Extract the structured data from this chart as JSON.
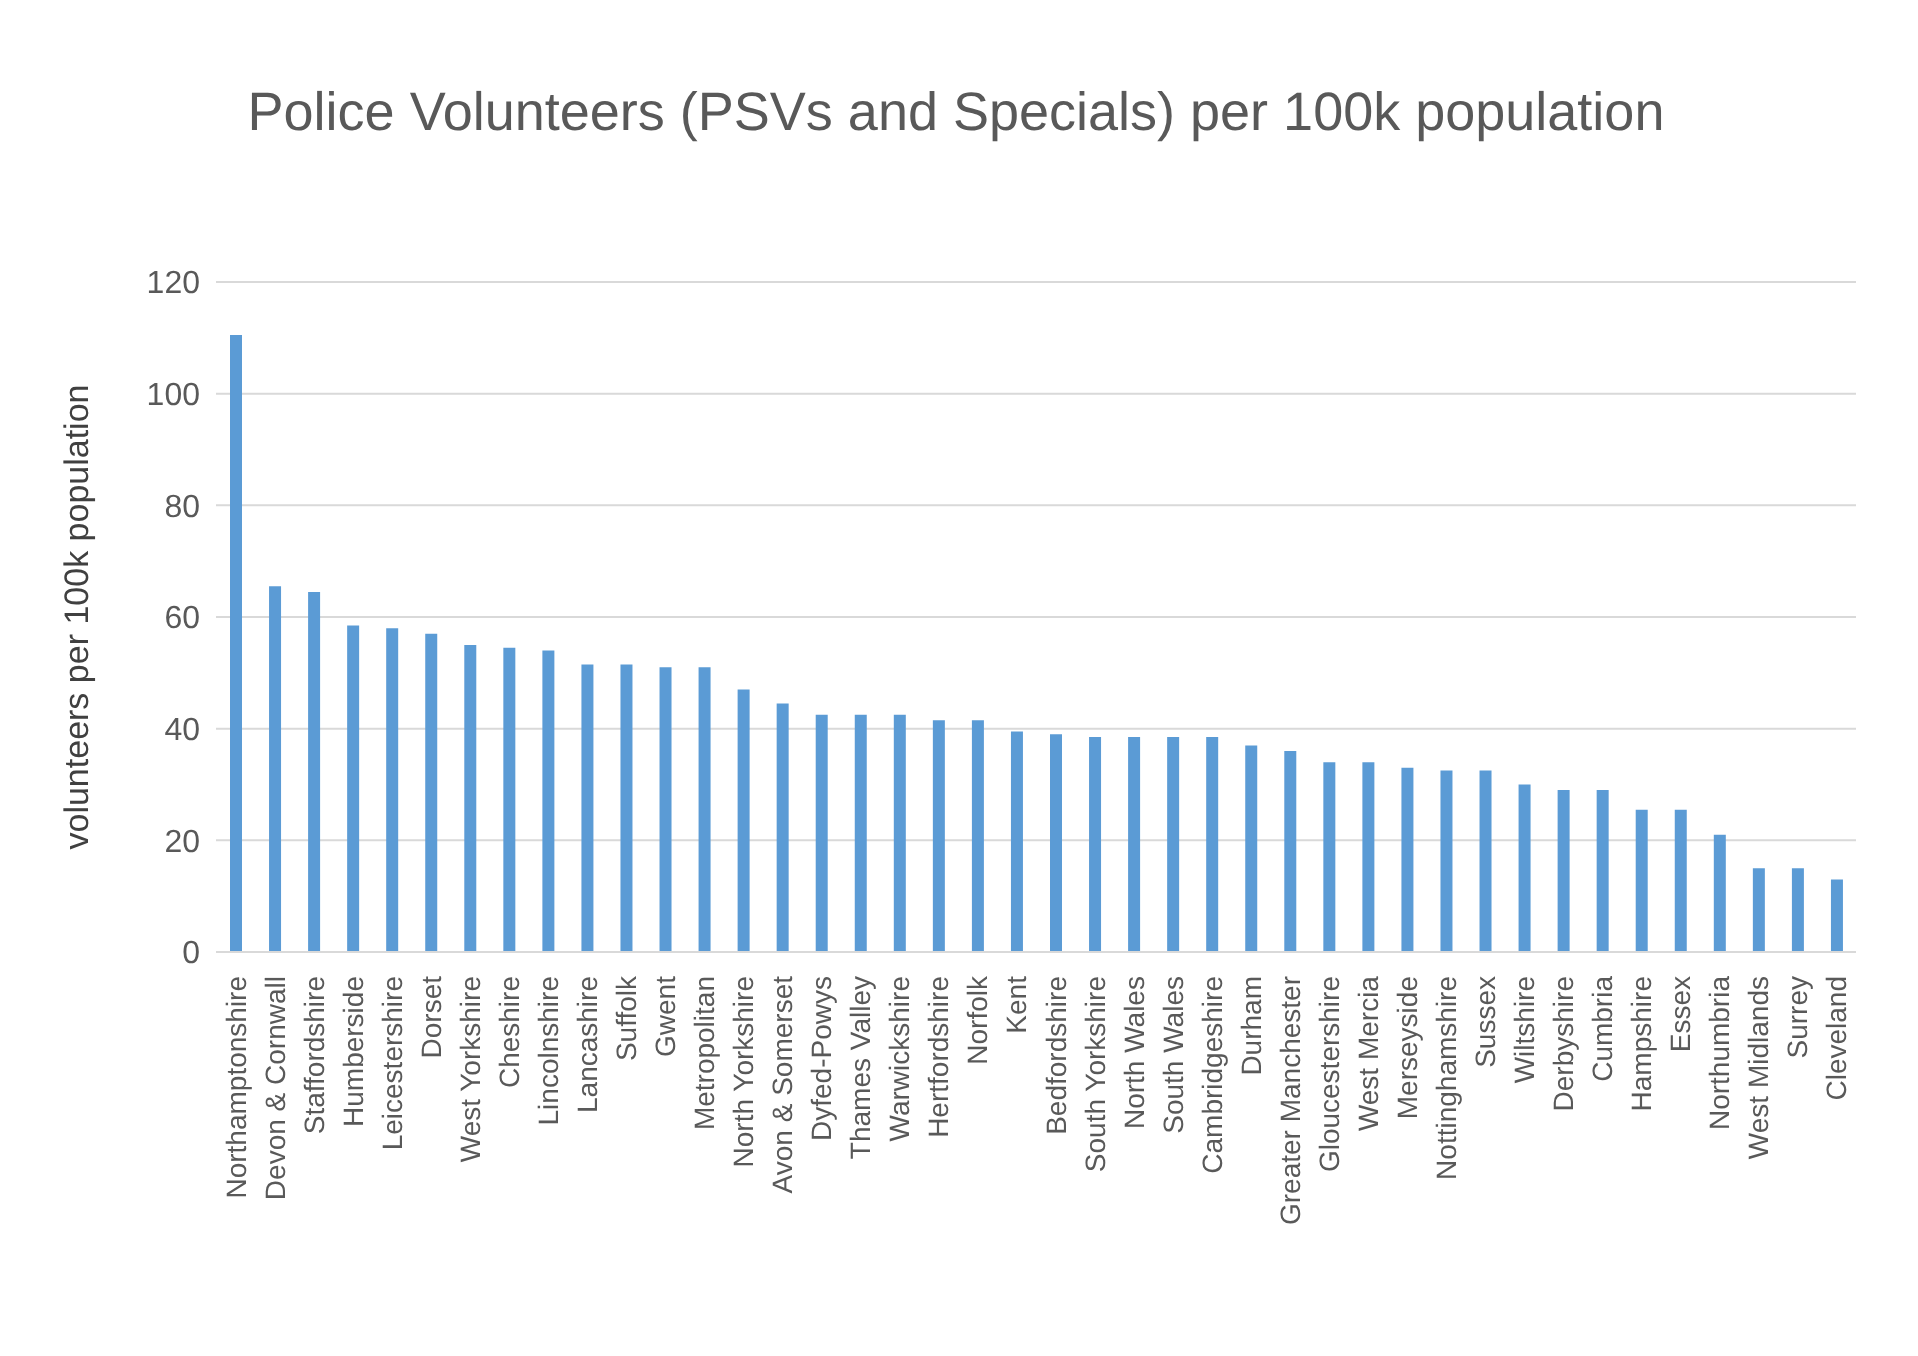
{
  "chart_data": {
    "type": "bar",
    "title": "Police Volunteers (PSVs and Specials) per 100k population",
    "ylabel": "volunteers per 100k population",
    "categories": [
      "Northamptonshire",
      "Devon & Cornwall",
      "Staffordshire",
      "Humberside",
      "Leicestershire",
      "Dorset",
      "West Yorkshire",
      "Cheshire",
      "Lincolnshire",
      "Lancashire",
      "Suffolk",
      "Gwent",
      "Metropolitan",
      "North Yorkshire",
      "Avon & Somerset",
      "Dyfed-Powys",
      "Thames Valley",
      "Warwickshire",
      "Hertfordshire",
      "Norfolk",
      "Kent",
      "Bedfordshire",
      "South Yorkshire",
      "North Wales",
      "South Wales",
      "Cambridgeshire",
      "Durham",
      "Greater Manchester",
      "Gloucestershire",
      "West Mercia",
      "Merseyside",
      "Nottinghamshire",
      "Sussex",
      "Wiltshire",
      "Derbyshire",
      "Cumbria",
      "Hampshire",
      "Essex",
      "Northumbria",
      "West Midlands",
      "Surrey",
      "Cleveland"
    ],
    "values": [
      110.5,
      65.5,
      64.5,
      58.5,
      58,
      57,
      55,
      54.5,
      54,
      51.5,
      51.5,
      51,
      51,
      47,
      44.5,
      42.5,
      42.5,
      42.5,
      41.5,
      41.5,
      39.5,
      39,
      38.5,
      38.5,
      38.5,
      38.5,
      37,
      36,
      34,
      34,
      33,
      32.5,
      32.5,
      30,
      29,
      29,
      25.5,
      25.5,
      21,
      15,
      15,
      13
    ],
    "color": "#5b9bd5",
    "ylim": [
      0,
      120
    ],
    "yticks": [
      0,
      20,
      40,
      60,
      80,
      100,
      120
    ],
    "grid": "y",
    "legend": false
  }
}
